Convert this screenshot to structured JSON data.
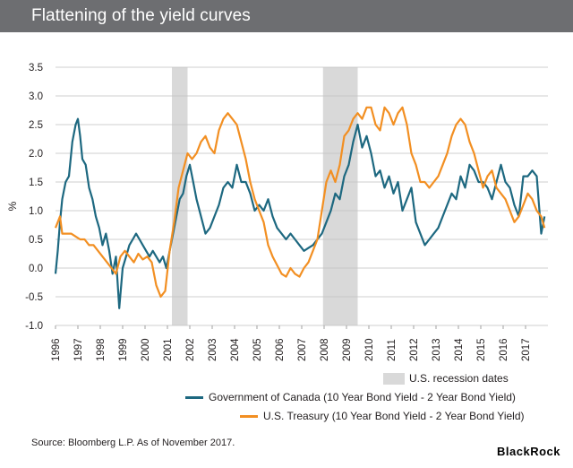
{
  "header": {
    "title": "Flattening of the yield curves"
  },
  "footer": {
    "source": "Source: Bloomberg L.P. As of November 2017.",
    "brand": "BlackRock"
  },
  "colors": {
    "canada": "#1d6880",
    "treasury": "#f28f22",
    "recession": "#d9d9d9",
    "title_bg": "#6d6e71"
  },
  "chart_data": {
    "type": "line",
    "title": "",
    "xlabel": "",
    "ylabel": "%",
    "ylim": [
      -1.0,
      3.5
    ],
    "yticks": [
      "3.5",
      "3.0",
      "2.5",
      "2.0",
      "1.5",
      "1.0",
      "0.5",
      "0.0",
      "-0.5",
      "-1.0"
    ],
    "xlim": [
      1996,
      2018
    ],
    "xticks": [
      "1996",
      "1997",
      "1998",
      "1999",
      "2000",
      "2001",
      "2002",
      "2003",
      "2004",
      "2005",
      "2006",
      "2007",
      "2008",
      "2009",
      "2010",
      "2011",
      "2012",
      "2013",
      "2014",
      "2015",
      "2016",
      "2017"
    ],
    "grid": "horizontal",
    "recessions": {
      "label": "U.S. recession dates",
      "periods": [
        [
          2001.2,
          2001.9
        ],
        [
          2007.95,
          2009.5
        ]
      ]
    },
    "series": [
      {
        "name": "Government of Canada (10 Year Bond Yield - 2 Year Bond Yield)",
        "color": "#1d6880",
        "x": [
          1996.0,
          1996.1,
          1996.2,
          1996.3,
          1996.45,
          1996.6,
          1996.75,
          1996.9,
          1997.0,
          1997.1,
          1997.2,
          1997.35,
          1997.5,
          1997.65,
          1997.8,
          1997.95,
          1998.1,
          1998.25,
          1998.4,
          1998.55,
          1998.7,
          1998.85,
          1999.0,
          1999.15,
          1999.3,
          1999.45,
          1999.6,
          1999.75,
          1999.9,
          2000.05,
          2000.2,
          2000.35,
          2000.5,
          2000.65,
          2000.8,
          2000.95,
          2001.1,
          2001.25,
          2001.4,
          2001.55,
          2001.7,
          2001.85,
          2002.0,
          2002.15,
          2002.3,
          2002.5,
          2002.7,
          2002.9,
          2003.1,
          2003.3,
          2003.5,
          2003.7,
          2003.9,
          2004.1,
          2004.3,
          2004.5,
          2004.7,
          2004.9,
          2005.1,
          2005.3,
          2005.5,
          2005.7,
          2005.9,
          2006.1,
          2006.3,
          2006.5,
          2006.7,
          2006.9,
          2007.1,
          2007.3,
          2007.5,
          2007.7,
          2007.9,
          2008.1,
          2008.3,
          2008.5,
          2008.7,
          2008.9,
          2009.1,
          2009.3,
          2009.5,
          2009.7,
          2009.9,
          2010.1,
          2010.3,
          2010.5,
          2010.7,
          2010.9,
          2011.1,
          2011.3,
          2011.5,
          2011.7,
          2011.9,
          2012.1,
          2012.3,
          2012.5,
          2012.7,
          2012.9,
          2013.1,
          2013.3,
          2013.5,
          2013.7,
          2013.9,
          2014.1,
          2014.3,
          2014.5,
          2014.7,
          2014.9,
          2015.1,
          2015.3,
          2015.5,
          2015.7,
          2015.9,
          2016.1,
          2016.3,
          2016.5,
          2016.7,
          2016.9,
          2017.1,
          2017.3,
          2017.5,
          2017.7,
          2017.85
        ],
        "y": [
          -0.1,
          0.3,
          0.8,
          1.2,
          1.5,
          1.6,
          2.2,
          2.5,
          2.6,
          2.3,
          1.9,
          1.8,
          1.4,
          1.2,
          0.9,
          0.7,
          0.4,
          0.6,
          0.3,
          -0.1,
          0.2,
          -0.7,
          0.0,
          0.2,
          0.4,
          0.5,
          0.6,
          0.5,
          0.4,
          0.3,
          0.2,
          0.3,
          0.2,
          0.1,
          0.2,
          0.0,
          0.3,
          0.6,
          0.9,
          1.2,
          1.3,
          1.6,
          1.8,
          1.5,
          1.2,
          0.9,
          0.6,
          0.7,
          0.9,
          1.1,
          1.4,
          1.5,
          1.4,
          1.8,
          1.5,
          1.5,
          1.3,
          1.0,
          1.1,
          1.0,
          1.2,
          0.9,
          0.7,
          0.6,
          0.5,
          0.6,
          0.5,
          0.4,
          0.3,
          0.35,
          0.4,
          0.5,
          0.6,
          0.8,
          1.0,
          1.3,
          1.2,
          1.6,
          1.8,
          2.2,
          2.5,
          2.1,
          2.3,
          2.0,
          1.6,
          1.7,
          1.4,
          1.6,
          1.3,
          1.5,
          1.0,
          1.2,
          1.4,
          0.8,
          0.6,
          0.4,
          0.5,
          0.6,
          0.7,
          0.9,
          1.1,
          1.3,
          1.2,
          1.6,
          1.4,
          1.8,
          1.7,
          1.5,
          1.5,
          1.4,
          1.2,
          1.5,
          1.8,
          1.5,
          1.4,
          1.1,
          0.9,
          1.6,
          1.6,
          1.7,
          1.6,
          0.6,
          0.9
        ]
      },
      {
        "name": "U.S. Treasury (10 Year Bond Yield - 2 Year Bond Yield)",
        "color": "#f28f22",
        "x": [
          1996.0,
          1996.1,
          1996.2,
          1996.3,
          1996.5,
          1996.7,
          1996.9,
          1997.1,
          1997.3,
          1997.5,
          1997.7,
          1997.9,
          1998.1,
          1998.3,
          1998.5,
          1998.7,
          1998.9,
          1999.1,
          1999.3,
          1999.5,
          1999.7,
          1999.9,
          2000.1,
          2000.3,
          2000.5,
          2000.7,
          2000.9,
          2001.1,
          2001.3,
          2001.5,
          2001.7,
          2001.9,
          2002.1,
          2002.3,
          2002.5,
          2002.7,
          2002.9,
          2003.1,
          2003.3,
          2003.5,
          2003.7,
          2003.9,
          2004.1,
          2004.3,
          2004.5,
          2004.7,
          2004.9,
          2005.1,
          2005.3,
          2005.5,
          2005.7,
          2005.9,
          2006.1,
          2006.3,
          2006.5,
          2006.7,
          2006.9,
          2007.1,
          2007.3,
          2007.5,
          2007.7,
          2007.9,
          2008.1,
          2008.3,
          2008.5,
          2008.7,
          2008.9,
          2009.1,
          2009.3,
          2009.5,
          2009.7,
          2009.9,
          2010.1,
          2010.3,
          2010.5,
          2010.7,
          2010.9,
          2011.1,
          2011.3,
          2011.5,
          2011.7,
          2011.9,
          2012.1,
          2012.3,
          2012.5,
          2012.7,
          2012.9,
          2013.1,
          2013.3,
          2013.5,
          2013.7,
          2013.9,
          2014.1,
          2014.3,
          2014.5,
          2014.7,
          2014.9,
          2015.1,
          2015.3,
          2015.5,
          2015.7,
          2015.9,
          2016.1,
          2016.3,
          2016.5,
          2016.7,
          2016.9,
          2017.1,
          2017.3,
          2017.5,
          2017.7,
          2017.85
        ],
        "y": [
          0.7,
          0.8,
          0.9,
          0.6,
          0.6,
          0.6,
          0.55,
          0.5,
          0.5,
          0.4,
          0.4,
          0.3,
          0.2,
          0.1,
          0.0,
          -0.1,
          0.2,
          0.3,
          0.2,
          0.1,
          0.25,
          0.15,
          0.2,
          0.1,
          -0.3,
          -0.5,
          -0.4,
          0.3,
          0.8,
          1.4,
          1.7,
          2.0,
          1.9,
          2.0,
          2.2,
          2.3,
          2.1,
          2.0,
          2.4,
          2.6,
          2.7,
          2.6,
          2.5,
          2.2,
          1.9,
          1.5,
          1.2,
          1.0,
          0.8,
          0.4,
          0.2,
          0.05,
          -0.1,
          -0.15,
          0.0,
          -0.1,
          -0.15,
          0.0,
          0.1,
          0.3,
          0.5,
          1.0,
          1.5,
          1.7,
          1.5,
          1.8,
          2.3,
          2.4,
          2.6,
          2.7,
          2.6,
          2.8,
          2.8,
          2.5,
          2.4,
          2.8,
          2.7,
          2.5,
          2.7,
          2.8,
          2.5,
          2.0,
          1.8,
          1.5,
          1.5,
          1.4,
          1.5,
          1.6,
          1.8,
          2.0,
          2.3,
          2.5,
          2.6,
          2.5,
          2.2,
          2.0,
          1.7,
          1.4,
          1.6,
          1.7,
          1.4,
          1.3,
          1.2,
          1.0,
          0.8,
          0.9,
          1.1,
          1.3,
          1.2,
          1.0,
          0.9,
          0.7
        ]
      }
    ]
  }
}
